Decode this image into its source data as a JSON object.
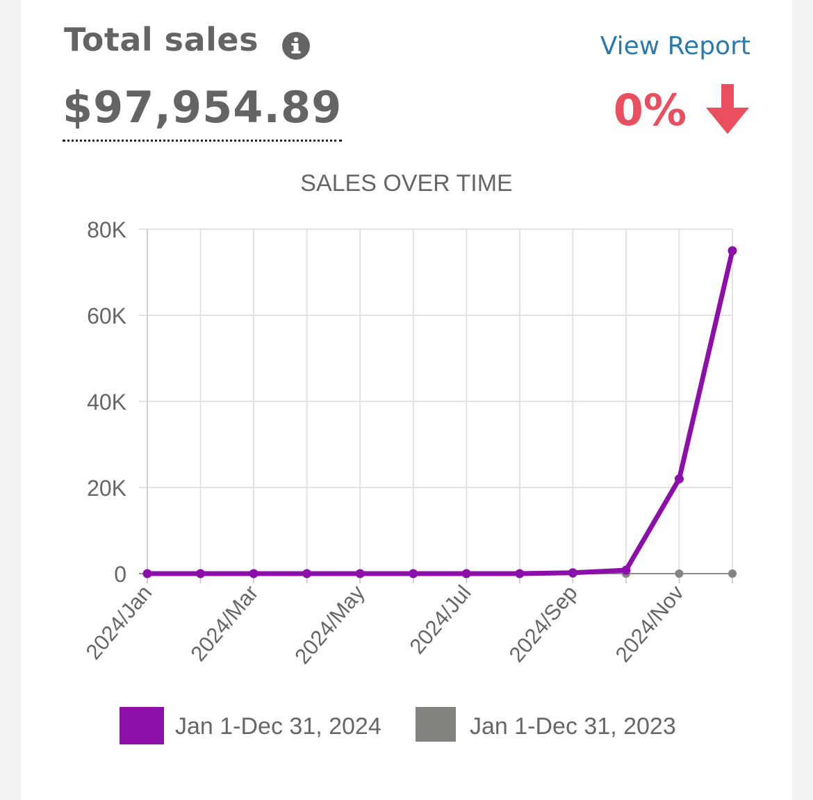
{
  "header": {
    "title": "Total sales",
    "info_icon": "info-circle-icon",
    "view_report_label": "View Report",
    "total_value": "$97,954.89",
    "change_value": "0%",
    "change_icon": "arrow-down-icon",
    "change_color": "#e94f5f",
    "link_color": "#2a7ab0"
  },
  "chart_data": {
    "type": "line",
    "title": "SALES OVER TIME",
    "xlabel": "",
    "ylabel": "",
    "x": [
      "2024/Jan",
      "2024/Feb",
      "2024/Mar",
      "2024/Apr",
      "2024/May",
      "2024/Jun",
      "2024/Jul",
      "2024/Aug",
      "2024/Sep",
      "2024/Oct",
      "2024/Nov",
      "2024/Dec"
    ],
    "x_tick_labels": [
      "2024/Jan",
      "2024/Mar",
      "2024/May",
      "2024/Jul",
      "2024/Sep",
      "2024/Nov"
    ],
    "y_ticks": [
      0,
      20000,
      40000,
      60000,
      80000
    ],
    "y_tick_labels": [
      "0",
      "20K",
      "40K",
      "60K",
      "80K"
    ],
    "ylim": [
      0,
      80000
    ],
    "grid": true,
    "legend_position": "bottom",
    "series": [
      {
        "name": "Jan 1-Dec 31, 2024",
        "color": "#8b0fa8",
        "values": [
          0,
          0,
          0,
          0,
          0,
          0,
          0,
          0,
          200,
          800,
          22000,
          75000
        ]
      },
      {
        "name": "Jan 1-Dec 31, 2023",
        "color": "#858380",
        "values": [
          0,
          0,
          0,
          0,
          0,
          0,
          0,
          0,
          0,
          0,
          0,
          0
        ]
      }
    ]
  }
}
